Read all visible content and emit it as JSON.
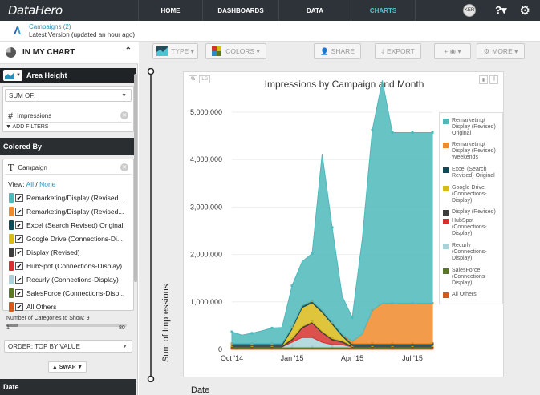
{
  "nav": {
    "logo": "DataHero",
    "items": [
      {
        "label": "HOME",
        "active": false
      },
      {
        "label": "DASHBOARDS",
        "active": false
      },
      {
        "label": "DATA",
        "active": false
      },
      {
        "label": "CHARTS",
        "active": true
      }
    ],
    "avatar_text": "KER",
    "help": "?▾",
    "gear": "⚙"
  },
  "crumb": {
    "link": "Campaigns (2)",
    "subtitle": "Latest Version (updated an hour ago)"
  },
  "sidebar": {
    "title": "IN MY CHART",
    "collapse": "⌃",
    "area_height": "Area Height",
    "sum_of": "SUM OF:",
    "measure": "Impressions",
    "measure_icon": "#",
    "add_filters": "▼ ADD FILTERS",
    "colored_by": "Colored By",
    "dimension": "Campaign",
    "dimension_icon": "T",
    "view_prefix": "View:",
    "view_all": "All",
    "view_sep": " / ",
    "view_none": "None",
    "categories": [
      {
        "label": "Remarketing/Display (Revised...",
        "color": "#4eb8bb"
      },
      {
        "label": "Remarketing/Display (Revised...",
        "color": "#f08a2c"
      },
      {
        "label": "Excel (Search Revised) Original",
        "color": "#0f4b57"
      },
      {
        "label": "Google Drive (Connections-Di...",
        "color": "#d8bb19"
      },
      {
        "label": "Display (Revised)",
        "color": "#3d3d3d"
      },
      {
        "label": "HubSpot (Connections-Display)",
        "color": "#d6312f"
      },
      {
        "label": "Recurly (Connections-Display)",
        "color": "#a9d3d9"
      },
      {
        "label": "SalesForce (Connections-Disp...",
        "color": "#5a7723"
      },
      {
        "label": "All Others",
        "color": "#d45a1c"
      }
    ],
    "num_categories_label": "Number of Categories to Show: 9",
    "slider_min": "1",
    "slider_max": "80",
    "slider_fraction": 0.1,
    "order": "ORDER: TOP BY VALUE",
    "swap": "▲ SWAP ▼",
    "date": "Date"
  },
  "toolbar": {
    "type": "TYPE",
    "colors": "COLORS",
    "share": "SHARE",
    "export": "EXPORT",
    "plus": "+",
    "more": "MORE"
  },
  "chart_data": {
    "type": "area",
    "title": "Impressions by Campaign and Month",
    "ylabel": "Sum of Impressions",
    "xlabel": "Date",
    "ylim": [
      0,
      5000000
    ],
    "yticks": [
      "0",
      "1,000,000",
      "2,000,000",
      "3,000,000",
      "4,000,000",
      "5,000,000"
    ],
    "xticks": [
      "Oct '14",
      "Jan '15",
      "Apr '15",
      "Jul '15"
    ],
    "toggles": [
      "%",
      "LG"
    ],
    "x": [
      0,
      0.5,
      1,
      1.5,
      2,
      2.5,
      3,
      3.5,
      4,
      4.5,
      5,
      5.5,
      6,
      6.5,
      7,
      7.5,
      8,
      8.5,
      9,
      9.5,
      10
    ],
    "series": [
      {
        "name": "Remarketing/ Display (Revised) Original",
        "color": "#4eb8bb",
        "values": [
          250000,
          180000,
          220000,
          270000,
          330000,
          340000,
          870000,
          930000,
          1000000,
          3300000,
          2000000,
          800000,
          500000,
          2000000,
          3800000,
          4700000,
          3600000,
          3600000,
          3600000,
          3600000,
          3600000
        ]
      },
      {
        "name": "Remarketing/ Display (Revised) Weekends",
        "color": "#f08a2c",
        "values": [
          0,
          0,
          0,
          0,
          0,
          0,
          0,
          0,
          0,
          0,
          0,
          0,
          50000,
          200000,
          700000,
          850000,
          850000,
          850000,
          850000,
          850000,
          850000
        ]
      },
      {
        "name": "Excel (Search Revised) Original",
        "color": "#0f4b57",
        "values": [
          40000,
          40000,
          40000,
          40000,
          40000,
          40000,
          40000,
          40000,
          40000,
          40000,
          40000,
          40000,
          40000,
          40000,
          40000,
          40000,
          40000,
          40000,
          40000,
          40000,
          40000
        ]
      },
      {
        "name": "Google Drive (Connections- Display)",
        "color": "#d8bb19",
        "values": [
          0,
          0,
          0,
          0,
          0,
          0,
          200000,
          400000,
          400000,
          400000,
          300000,
          100000,
          0,
          0,
          0,
          0,
          0,
          0,
          0,
          0,
          0
        ]
      },
      {
        "name": "Display (Revised)",
        "color": "#3d3d3d",
        "values": [
          30000,
          30000,
          30000,
          30000,
          30000,
          30000,
          30000,
          30000,
          30000,
          30000,
          30000,
          30000,
          30000,
          30000,
          30000,
          30000,
          30000,
          30000,
          30000,
          30000,
          30000
        ]
      },
      {
        "name": "HubSpot (Connections- Display)",
        "color": "#d6312f",
        "values": [
          0,
          0,
          0,
          0,
          0,
          0,
          50000,
          200000,
          300000,
          200000,
          100000,
          50000,
          0,
          0,
          0,
          0,
          0,
          0,
          0,
          0,
          0
        ]
      },
      {
        "name": "Recurly (Connections- Display)",
        "color": "#a9d3d9",
        "values": [
          0,
          0,
          0,
          0,
          0,
          0,
          100000,
          200000,
          200000,
          100000,
          50000,
          50000,
          0,
          0,
          0,
          0,
          0,
          0,
          0,
          0,
          0
        ]
      },
      {
        "name": "SalesForce (Connections- Display)",
        "color": "#5a7723",
        "values": [
          30000,
          30000,
          30000,
          30000,
          30000,
          30000,
          30000,
          30000,
          30000,
          30000,
          30000,
          30000,
          30000,
          30000,
          30000,
          30000,
          30000,
          30000,
          30000,
          30000,
          30000
        ]
      },
      {
        "name": "All Others",
        "color": "#d45a1c",
        "values": [
          20000,
          20000,
          20000,
          20000,
          20000,
          20000,
          20000,
          20000,
          20000,
          20000,
          20000,
          20000,
          20000,
          20000,
          20000,
          20000,
          20000,
          20000,
          20000,
          20000,
          20000
        ]
      }
    ]
  }
}
